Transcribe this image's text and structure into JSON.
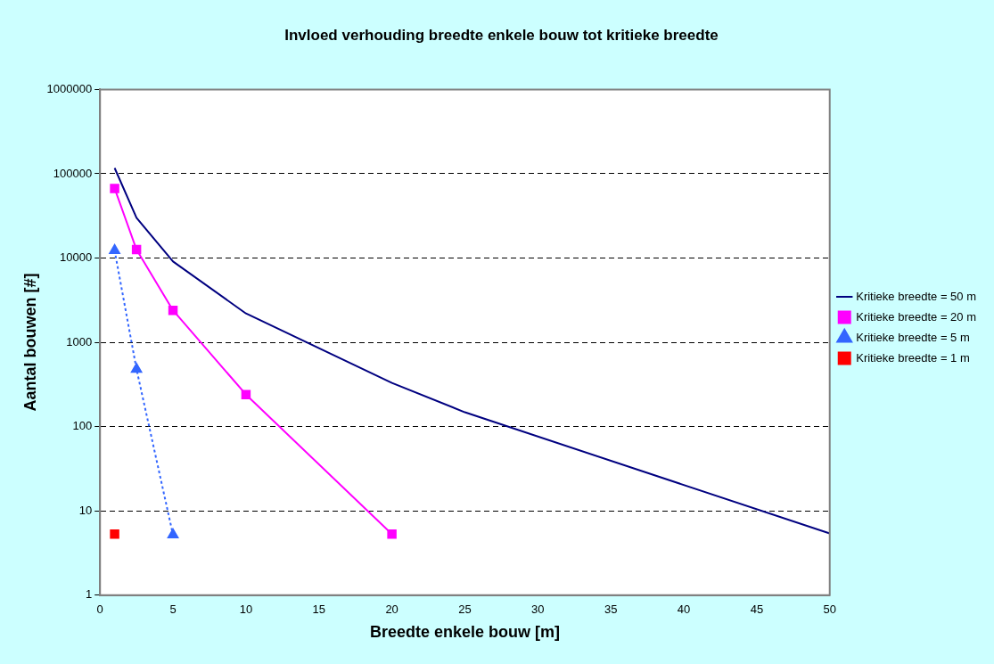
{
  "chart_data": {
    "type": "line",
    "title": "Invloed verhouding breedte enkele bouw tot kritieke breedte",
    "xlabel": "Breedte enkele bouw [m]",
    "ylabel": "Aantal bouwen [#]",
    "log": "y",
    "grid": "y",
    "legend": "right",
    "xlim": [
      0,
      50
    ],
    "xticks": [
      0,
      5,
      10,
      15,
      20,
      25,
      30,
      35,
      40,
      45,
      50
    ],
    "ylim": [
      1,
      1000000
    ],
    "yticks": [
      1,
      10,
      100,
      1000,
      10000,
      100000,
      1000000
    ],
    "series": [
      {
        "name": "Kritieke breedte = 50 m",
        "color": "#000080",
        "marker": "none",
        "line_style": "solid",
        "x": [
          1,
          2.5,
          5,
          10,
          20,
          25,
          50
        ],
        "values": [
          117000,
          30000,
          9100,
          2200,
          330,
          148,
          5.4
        ]
      },
      {
        "name": "Kritieke breedte = 20 m",
        "color": "#ff00ff",
        "marker": "square",
        "line_style": "solid",
        "x": [
          1,
          2.5,
          5,
          10,
          20
        ],
        "values": [
          67000,
          12600,
          2400,
          240,
          5.3
        ]
      },
      {
        "name": "Kritieke breedte = 5 m",
        "color": "#3366ff",
        "marker": "triangle",
        "line_style": "dotted",
        "x": [
          1,
          2.5,
          5
        ],
        "values": [
          12300,
          480,
          5.2
        ]
      },
      {
        "name": "Kritieke breedte = 1 m",
        "type": "scatter",
        "color": "#ff0000",
        "marker": "square",
        "x": [
          1
        ],
        "values": [
          5.3
        ]
      }
    ]
  }
}
